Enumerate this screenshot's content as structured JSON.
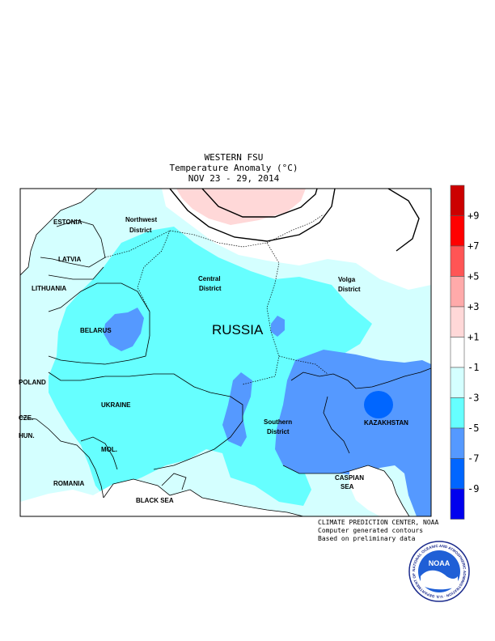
{
  "header": {
    "line1": "WESTERN FSU",
    "line2": "Temperature Anomaly (°C)",
    "line3": "NOV 23 - 29, 2014"
  },
  "map_labels": {
    "russia": "RUSSIA",
    "estonia": "ESTONIA",
    "latvia": "LATVIA",
    "lithuania": "LITHUANIA",
    "belarus": "BELARUS",
    "poland": "POLAND",
    "czech": "CZE.",
    "hungary": "HUN.",
    "ukraine": "UKRAINE",
    "moldova": "MOL.",
    "romania": "ROMANIA",
    "black_sea": "BLACK SEA",
    "caspian_1": "CASPIAN",
    "caspian_2": "SEA",
    "kazakhstan": "KAZAKHSTAN",
    "nw_1": "Northwest",
    "nw_2": "District",
    "central_1": "Central",
    "central_2": "District",
    "volga_1": "Volga",
    "volga_2": "District",
    "south_1": "Southern",
    "south_2": "District"
  },
  "legend": {
    "colors": [
      "#cc0000",
      "#ff0000",
      "#ff5555",
      "#ffaaaa",
      "#ffd8d8",
      "#ffffff",
      "#d4ffff",
      "#66ffff",
      "#5599ff",
      "#0066ff",
      "#0000ee"
    ],
    "ticks": [
      "+9",
      "+7",
      "+5",
      "+3",
      "+1",
      "-1",
      "-3",
      "-5",
      "-7",
      "-9"
    ]
  },
  "credit": {
    "line1": "CLIMATE PREDICTION CENTER, NOAA",
    "line2": "Computer generated contours",
    "line3": "Based on preliminary data"
  },
  "logo": {
    "center": "NOAA",
    "ring": "NATIONAL OCEANIC AND ATMOSPHERIC ADMINISTRATION · U.S. DEPARTMENT OF COMMERCE"
  }
}
